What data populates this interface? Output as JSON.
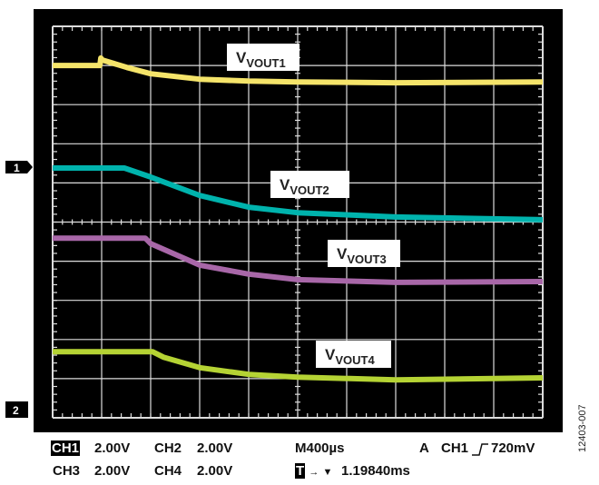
{
  "chart_data": {
    "type": "line",
    "title": "",
    "grid": true,
    "divisions": {
      "horizontal": 10,
      "vertical": 10
    },
    "x_unit": "µs",
    "y_unit": "div",
    "xlim": [
      0,
      4000
    ],
    "ylim": [
      0,
      10
    ],
    "series": [
      {
        "name": "VOUT1",
        "color": "#f5e46a",
        "x": [
          0,
          385,
          393,
          407,
          607,
          800,
          1200,
          1600,
          2000,
          2800,
          4000
        ],
        "y": [
          9.0,
          9.0,
          9.19,
          9.14,
          8.95,
          8.79,
          8.65,
          8.6,
          8.58,
          8.56,
          8.58
        ]
      },
      {
        "name": "VOUT2",
        "color": "#00b3ad",
        "x": [
          0,
          585,
          800,
          1200,
          1600,
          2000,
          2800,
          4000
        ],
        "y": [
          6.38,
          6.38,
          6.15,
          5.68,
          5.38,
          5.24,
          5.13,
          5.06
        ]
      },
      {
        "name": "VOUT3",
        "color": "#a867a8",
        "x": [
          0,
          756,
          800,
          1200,
          1600,
          2000,
          2800,
          4000
        ],
        "y": [
          4.59,
          4.59,
          4.45,
          3.9,
          3.67,
          3.53,
          3.46,
          3.48
        ]
      },
      {
        "name": "VOUT4",
        "color": "#b5d334",
        "x": [
          0,
          815,
          904,
          1200,
          1600,
          2000,
          2800,
          4000
        ],
        "y": [
          1.69,
          1.69,
          1.55,
          1.28,
          1.11,
          1.04,
          0.97,
          1.02
        ]
      }
    ],
    "trace_labels": [
      {
        "main": "V",
        "sub": "VOUT1"
      },
      {
        "main": "V",
        "sub": "VOUT2"
      },
      {
        "main": "V",
        "sub": "VOUT3"
      },
      {
        "main": "V",
        "sub": "VOUT4"
      }
    ],
    "ground_markers": [
      "1",
      "2"
    ]
  },
  "readout": {
    "row1": {
      "ch1": "CH1",
      "ch1_scale": "2.00V",
      "ch2": "CH2",
      "ch2_scale": "2.00V",
      "timebase": "M400µs",
      "trigger_mode": "A",
      "trigger_source": "CH1",
      "trigger_edge_icon": "rising-edge",
      "trigger_level": "720mV"
    },
    "row2": {
      "ch3": "CH3",
      "ch3_scale": "2.00V",
      "ch4": "CH4",
      "ch4_scale": "2.00V",
      "trigger_pos_label": "T",
      "arrow": "→",
      "marker": "▼",
      "trigger_delay": "1.19840ms"
    }
  },
  "figure_id": "12403-007"
}
